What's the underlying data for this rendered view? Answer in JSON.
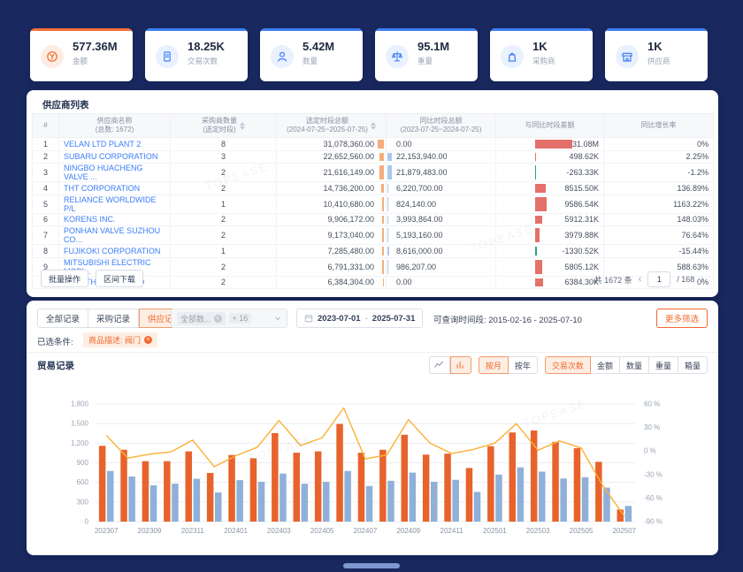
{
  "colors": {
    "accent_orange": "#f2682a",
    "accent_blue": "#3d7ff7",
    "link_blue": "#3a7df7",
    "red_text": "#e8544c",
    "green_text": "#27a780",
    "bar_orange": "#e8632c",
    "bar_blue": "#8fb0d9",
    "line_yellow": "#fbb036",
    "mini_orange": "#f6ad7b",
    "mini_blue": "#a8c9ef",
    "diff_red": "#e4706a",
    "diff_green": "#27a780",
    "background_navy": "#19295f"
  },
  "stats": [
    {
      "value": "577.36M",
      "label": "金额",
      "icon": "money-icon",
      "color": "orange"
    },
    {
      "value": "18.25K",
      "label": "交易次数",
      "icon": "document-icon",
      "color": "blue"
    },
    {
      "value": "5.42M",
      "label": "数量",
      "icon": "person-icon",
      "color": "blue"
    },
    {
      "value": "95.1M",
      "label": "重量",
      "icon": "scale-icon",
      "color": "blue"
    },
    {
      "value": "1K",
      "label": "采购商",
      "icon": "bag-icon",
      "color": "blue"
    },
    {
      "value": "1K",
      "label": "供应商",
      "icon": "shop-icon",
      "color": "blue"
    }
  ],
  "supplier_panel": {
    "title": "供应商列表",
    "columns": {
      "index": "#",
      "name_l1": "供应商名称",
      "name_l2": "(总数: 1672)",
      "buyers_l1": "采购商数量",
      "buyers_l2": "(选定时段)",
      "current_l1": "选定时段总额",
      "current_l2": "(2024-07-25~2025-07-25)",
      "yoy_l1": "同比时段总额",
      "yoy_l2": "(2023-07-25~2024-07-25)",
      "diff": "与同比时段差额",
      "growth": "同比增长率"
    },
    "rows": [
      {
        "idx": "1",
        "name": "VELAN LTD PLANT 2",
        "buyers": "8",
        "current": "31,078,360.00",
        "yoy": "0.00",
        "diff": "31.08M",
        "growth": "0%"
      },
      {
        "idx": "2",
        "name": "SUBARU CORPORATION",
        "buyers": "3",
        "current": "22,652,560.00",
        "yoy": "22,153,940.00",
        "diff": "498.62K",
        "growth": "2.25%"
      },
      {
        "idx": "3",
        "name": "NINGBO HUACHENG VALVE ...",
        "buyers": "2",
        "current": "21,616,149.00",
        "yoy": "21,879,483.00",
        "diff": "-263.33K",
        "growth": "-1.2%"
      },
      {
        "idx": "4",
        "name": "THT CORPORATION",
        "buyers": "2",
        "current": "14,736,200.00",
        "yoy": "6,220,700.00",
        "diff": "8515.50K",
        "growth": "136.89%"
      },
      {
        "idx": "5",
        "name": "RELIANCE WORLDWIDE P/L",
        "buyers": "1",
        "current": "10,410,680.00",
        "yoy": "824,140.00",
        "diff": "9586.54K",
        "growth": "1163.22%"
      },
      {
        "idx": "6",
        "name": "KORENS INC.",
        "buyers": "2",
        "current": "9,906,172.00",
        "yoy": "3,993,864.00",
        "diff": "5912.31K",
        "growth": "148.03%"
      },
      {
        "idx": "7",
        "name": "PONHAN VALVE SUZHOU CO...",
        "buyers": "2",
        "current": "9,173,040.00",
        "yoy": "5,193,160.00",
        "diff": "3979.88K",
        "growth": "76.64%"
      },
      {
        "idx": "8",
        "name": "FUJIKOKI CORPORATION",
        "buyers": "1",
        "current": "7,285,480.00",
        "yoy": "8,616,000.00",
        "diff": "-1330.52K",
        "growth": "-15.44%"
      },
      {
        "idx": "9",
        "name": "MITSUBISHI ELECTRIC MOBI...",
        "buyers": "2",
        "current": "6,791,331.00",
        "yoy": "986,207.00",
        "diff": "5805.12K",
        "growth": "588.63%"
      },
      {
        "idx": "10",
        "name": "KITZ (THAILAND) LTD",
        "buyers": "2",
        "current": "6,384,304.00",
        "yoy": "0.00",
        "diff": "6384.30K",
        "growth": "0%"
      }
    ],
    "footer": {
      "batch_label": "批量操作",
      "download_label": "区间下载",
      "total_text": "共 1672 条",
      "page": "1",
      "page_sep": "/ 168",
      "prev": "‹",
      "next": "›"
    }
  },
  "filter": {
    "tabs": [
      {
        "label": "全部记录",
        "active": false
      },
      {
        "label": "采购记录",
        "active": false
      },
      {
        "label": "供应记录",
        "active": true
      }
    ],
    "dataset_tag": "全部数...",
    "dataset_more": "+ 16",
    "date_from": "2023-07-01",
    "date_sep": "-",
    "date_to": "2025-07-31",
    "range_hint": "可查询时间段: 2015-02-16 - 2025-07-10",
    "more_button": "更多筛选",
    "selected_label": "已选条件:",
    "selected_tag": "商品描述: 阀门"
  },
  "trade": {
    "title": "贸易记录",
    "chart_type_icons": [
      {
        "icon": "line-chart-icon",
        "active": false
      },
      {
        "icon": "bar-chart-icon",
        "active": true
      }
    ],
    "period_buttons": [
      {
        "label": "按月",
        "active": true
      },
      {
        "label": "按年",
        "active": false
      }
    ],
    "metric_buttons": [
      {
        "label": "交易次数",
        "active": true
      },
      {
        "label": "金额",
        "active": false
      },
      {
        "label": "数量",
        "active": false
      },
      {
        "label": "重量",
        "active": false
      },
      {
        "label": "箱量",
        "active": false
      }
    ]
  },
  "chart_data": {
    "type": "bar",
    "title": "贸易记录",
    "x": [
      "202307",
      "202308",
      "202309",
      "202310",
      "202311",
      "202312",
      "202401",
      "202402",
      "202403",
      "202404",
      "202405",
      "202406",
      "202407",
      "202408",
      "202409",
      "202410",
      "202411",
      "202412",
      "202501",
      "202502",
      "202503",
      "202504",
      "202505",
      "202506",
      "202507"
    ],
    "x_labels_shown": [
      "202307",
      "202309",
      "202311",
      "202401",
      "202403",
      "202405",
      "202407",
      "202409",
      "202411",
      "202501",
      "202503",
      "202505",
      "202507"
    ],
    "series": [
      {
        "name": "current-period-count",
        "kind": "bar",
        "color": "#e8632c",
        "values": [
          1160,
          1100,
          925,
          925,
          1075,
          745,
          1020,
          970,
          1355,
          1055,
          1075,
          1495,
          1055,
          1100,
          1330,
          1025,
          1040,
          820,
          1155,
          1365,
          1395,
          1220,
          1125,
          915,
          185
        ]
      },
      {
        "name": "previous-period-count",
        "kind": "bar",
        "color": "#8fb0d9",
        "values": [
          775,
          690,
          555,
          580,
          655,
          445,
          635,
          610,
          735,
          580,
          610,
          775,
          545,
          625,
          750,
          610,
          640,
          455,
          720,
          830,
          765,
          660,
          680,
          520,
          240
        ]
      },
      {
        "name": "yoy-growth-percent",
        "kind": "line",
        "axis": "right",
        "color": "#fbb036",
        "values": [
          20,
          -9,
          -4,
          -1,
          14,
          -20,
          -6,
          5,
          39,
          7,
          17,
          55,
          -10,
          -5,
          40,
          10,
          -3,
          2,
          10,
          35,
          1,
          13,
          4,
          -44,
          -83
        ]
      }
    ],
    "left_axis": {
      "min": 0,
      "max": 1800,
      "step": 300,
      "tick_labels": [
        "0",
        "300",
        "600",
        "900",
        "1,200",
        "1,500",
        "1,800"
      ]
    },
    "right_axis": {
      "min": -90,
      "max": 60,
      "step": 30,
      "tick_labels": [
        "60 %",
        "30 %",
        "0 %",
        "-30 %",
        "-60 %",
        "-90 %"
      ]
    },
    "grid": true,
    "legend": false
  },
  "watermark": "TOPEASE"
}
